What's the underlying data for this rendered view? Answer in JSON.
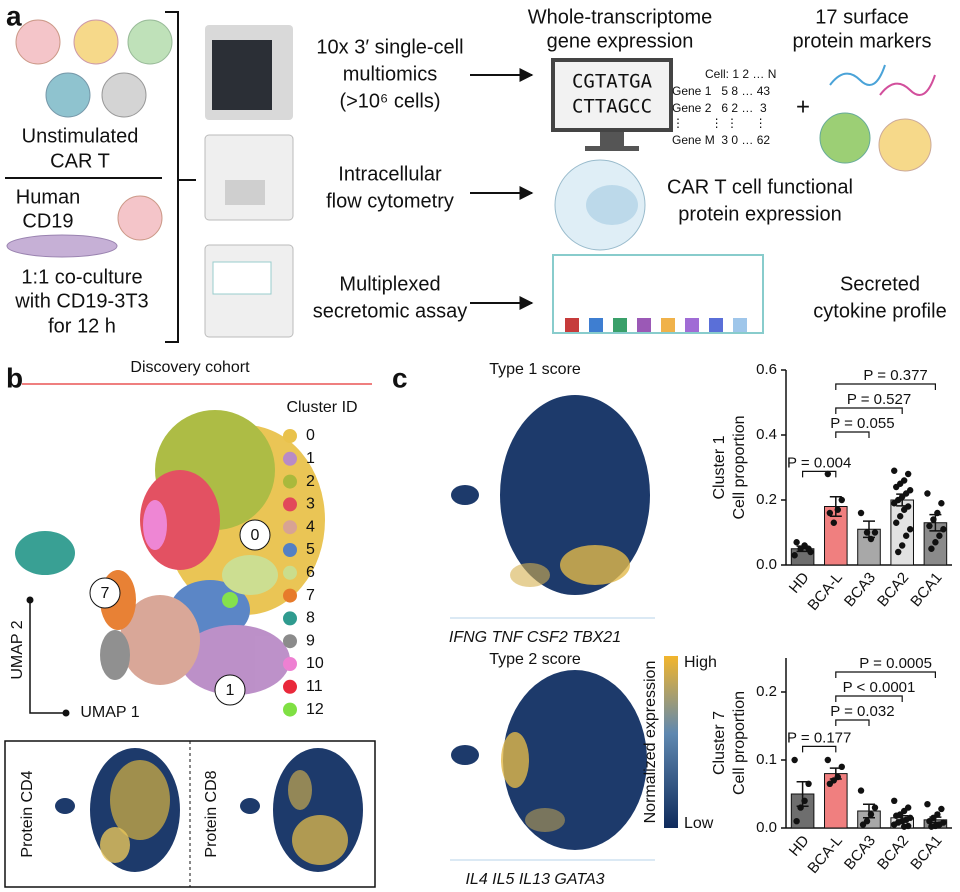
{
  "panel_labels": [
    "a",
    "b",
    "c"
  ],
  "panel_a": {
    "unstimulated": [
      "Unstimulated",
      "CAR T"
    ],
    "coculture": [
      "Human",
      "CD19",
      "1:1 co-culture",
      "with CD19-3T3",
      "for 12 h"
    ],
    "assay_1": [
      "10x 3′ single-cell",
      "multiomics",
      "(>10⁶ cells)"
    ],
    "assay_2": [
      "Intracellular",
      "flow cytometry"
    ],
    "assay_3": [
      "Multiplexed",
      "secretomic assay"
    ],
    "output_rna": [
      "Whole-transcriptome",
      "gene expression"
    ],
    "output_protein": [
      "17 surface",
      "protein markers"
    ],
    "sequence": [
      "CGTATGA",
      "CTTAGCC"
    ],
    "matrix": [
      "Cell: 1 2 … N",
      "Gene 1   5 8 … 43",
      "Gene 2   6 2 …  3",
      "⋮        ⋮ ⋮     ⋮",
      "Gene M  3 0 … 62"
    ],
    "plus": "+",
    "output_functional": [
      "CAR T cell functional",
      "protein expression"
    ],
    "output_cytokine": [
      "Secreted",
      "cytokine profile"
    ]
  },
  "panel_b": {
    "cohort": "Discovery cohort",
    "legend_title": "Cluster ID",
    "clusters": [
      {
        "name": "0",
        "color": "#e9c24c"
      },
      {
        "name": "1",
        "color": "#b98bc6"
      },
      {
        "name": "2",
        "color": "#a9b93c"
      },
      {
        "name": "3",
        "color": "#e2485a"
      },
      {
        "name": "4",
        "color": "#d8a393"
      },
      {
        "name": "5",
        "color": "#5380c4"
      },
      {
        "name": "6",
        "color": "#cadd8c"
      },
      {
        "name": "7",
        "color": "#e77b2b"
      },
      {
        "name": "8",
        "color": "#2f9b8f"
      },
      {
        "name": "9",
        "color": "#8b8b8b"
      },
      {
        "name": "10",
        "color": "#ee80d2"
      },
      {
        "name": "11",
        "color": "#e9293b"
      },
      {
        "name": "12",
        "color": "#7fe043"
      }
    ],
    "callouts": [
      "0",
      "7",
      "1"
    ],
    "axis_y": "UMAP 2",
    "axis_x": "UMAP 1",
    "protein_panels": [
      "Protein CD4",
      "Protein CD8"
    ]
  },
  "panel_c": {
    "type1_title": "Type 1 score",
    "type1_genes": "IFNG TNF CSF2 TBX21",
    "type2_title": "Type 2 score",
    "type2_genes": "IL4 IL5 IL13 GATA3",
    "colorbar_title": "Normalized expression",
    "colorbar_high": "High",
    "colorbar_low": "Low"
  },
  "chart_data": [
    {
      "type": "bar",
      "ylabel": [
        "Cluster 1",
        "Cell proportion"
      ],
      "categories": [
        "HD",
        "BCA-L",
        "BCA3",
        "BCA2",
        "BCA1"
      ],
      "colors": [
        "#6e6e6e",
        "#f07f7f",
        "#a8a8a8",
        "#e2e2e2",
        "#8a8a8a"
      ],
      "values": [
        0.05,
        0.18,
        0.11,
        0.2,
        0.13
      ],
      "errors": [
        0.008,
        0.03,
        0.025,
        0.018,
        0.025
      ],
      "points": [
        [
          0.03,
          0.05,
          0.06,
          0.05,
          0.07,
          0.04
        ],
        [
          0.28,
          0.2,
          0.17,
          0.13,
          0.16
        ],
        [
          0.16,
          0.1,
          0.08,
          0.1
        ],
        [
          0.29,
          0.28,
          0.26,
          0.25,
          0.24,
          0.23,
          0.22,
          0.21,
          0.2,
          0.19,
          0.18,
          0.17,
          0.15,
          0.13,
          0.11,
          0.09,
          0.06,
          0.04
        ],
        [
          0.22,
          0.19,
          0.16,
          0.14,
          0.12,
          0.11,
          0.09,
          0.07,
          0.05
        ]
      ],
      "ylim": [
        0,
        0.6
      ],
      "yticks": [
        {
          "value": 0,
          "label": "0.0"
        },
        0.2,
        0.4,
        0.6
      ],
      "comparisons": [
        {
          "label": "P = 0.004",
          "groups": [
            "HD",
            "BCA-L"
          ]
        },
        {
          "label": "P = 0.055",
          "groups": [
            "BCA-L",
            "BCA3"
          ]
        },
        {
          "label": "P = 0.527",
          "groups": [
            "BCA-L",
            "BCA2"
          ]
        },
        {
          "label": "P = 0.377",
          "groups": [
            "BCA-L",
            "BCA1"
          ]
        }
      ]
    },
    {
      "type": "bar",
      "ylabel": [
        "Cluster 7",
        "Cell proportion"
      ],
      "categories": [
        "HD",
        "BCA-L",
        "BCA3",
        "BCA2",
        "BCA1"
      ],
      "colors": [
        "#6e6e6e",
        "#f07f7f",
        "#a8a8a8",
        "#e2e2e2",
        "#8a8a8a"
      ],
      "values": [
        0.05,
        0.08,
        0.025,
        0.015,
        0.012
      ],
      "errors": [
        0.018,
        0.008,
        0.01,
        0.003,
        0.004
      ],
      "points": [
        [
          0.1,
          0.065,
          0.04,
          0.03,
          0.01
        ],
        [
          0.1,
          0.09,
          0.075,
          0.07,
          0.065
        ],
        [
          0.055,
          0.03,
          0.02,
          0.01,
          0.005
        ],
        [
          0.04,
          0.03,
          0.025,
          0.02,
          0.018,
          0.015,
          0.012,
          0.01,
          0.008,
          0.005,
          0.003,
          0.002
        ],
        [
          0.035,
          0.028,
          0.02,
          0.015,
          0.01,
          0.008,
          0.005,
          0.003,
          0.002
        ]
      ],
      "ylim": [
        0,
        0.25
      ],
      "yticks": [
        {
          "value": 0,
          "label": "0.0"
        },
        0.1,
        0.2
      ],
      "comparisons": [
        {
          "label": "P = 0.177",
          "groups": [
            "HD",
            "BCA-L"
          ]
        },
        {
          "label": "P = 0.032",
          "groups": [
            "BCA-L",
            "BCA3"
          ]
        },
        {
          "label": "P < 0.0001",
          "groups": [
            "BCA-L",
            "BCA2"
          ]
        },
        {
          "label": "P = 0.0005",
          "groups": [
            "BCA-L",
            "BCA1"
          ]
        }
      ]
    }
  ]
}
